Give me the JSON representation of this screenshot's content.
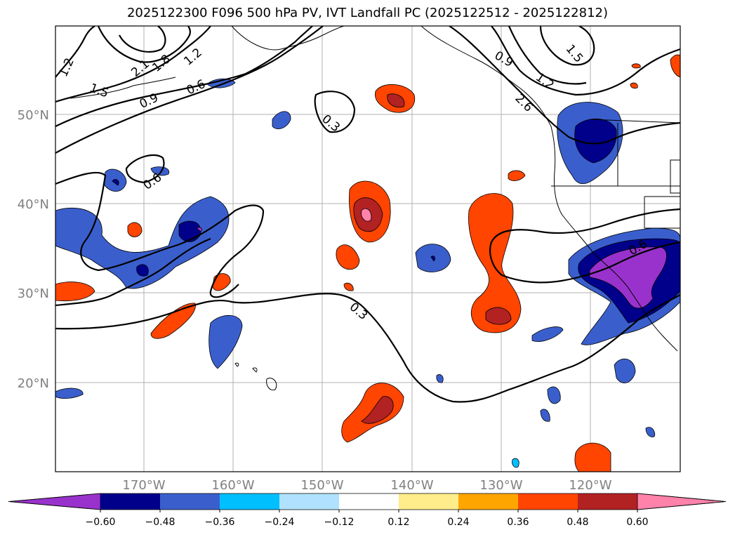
{
  "title": "2025122300 F096 500 hPa PV, IVT Landfall PC (2025122512 - 2025122812)",
  "latitude_labels": [
    "50°N",
    "40°N",
    "30°N",
    "20°N"
  ],
  "longitude_labels": [
    "170°W",
    "160°W",
    "150°W",
    "140°W",
    "130°W",
    "120°W"
  ],
  "contour_labels": [
    "1.2",
    "2.1",
    "1.8",
    "1.2",
    "1.5",
    "0.9",
    "0.6",
    "0.3",
    "0.9",
    "1.5",
    "1.2",
    "2.6",
    "0.6",
    "0.3",
    "0.6"
  ],
  "colorbar": {
    "tick_labels": [
      "−0.60",
      "−0.48",
      "−0.36",
      "−0.24",
      "−0.12",
      "0.12",
      "0.24",
      "0.36",
      "0.48",
      "0.60"
    ],
    "colors": [
      "#9932cc",
      "#00008b",
      "#3a5fcd",
      "#00bfff",
      "#b0e2ff",
      "#ffffff",
      "#ffec8b",
      "#ffa500",
      "#ff4500",
      "#b22222",
      "#ff82ab"
    ]
  }
}
